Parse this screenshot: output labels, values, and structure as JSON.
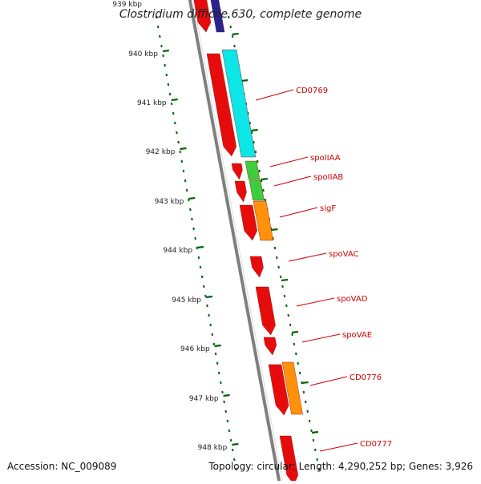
{
  "title": "Clostridium difficile 630, complete genome",
  "footer": {
    "accession": "Accession: NC_009089",
    "summary": "Topology: circular; Length: 4,290,252 bp; Genes: 3,926"
  },
  "top_partial_label": "939 kbp",
  "kbp_labels": [
    "940 kbp",
    "941 kbp",
    "942 kbp",
    "943 kbp",
    "944 kbp",
    "945 kbp",
    "946 kbp",
    "947 kbp",
    "948 kbp"
  ],
  "gene_labels": [
    "CD0769",
    "spoIIAA",
    "spoIIAB",
    "sigF",
    "spoVAC",
    "spoVAD",
    "spoVAE",
    "CD0776",
    "CD0777"
  ],
  "colors": {
    "label_red": "#cc0000",
    "tick_green": "#006400",
    "backbone": "#7f7f7f",
    "feature_red": "#e60000",
    "cyan": "#00e5e5",
    "green": "#33cc33",
    "orange": "#ff8c00",
    "navy": "#1a1a8c"
  }
}
